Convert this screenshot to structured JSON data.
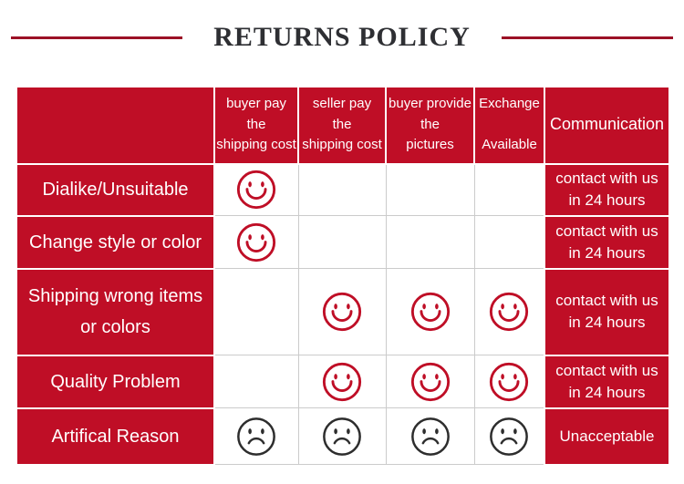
{
  "page": {
    "title": "RETURNS POLICY"
  },
  "table": {
    "columns": [
      {
        "key": "category",
        "label": ""
      },
      {
        "key": "buyer_pay",
        "label": "buyer pay\nthe\nshipping cost"
      },
      {
        "key": "seller_pay",
        "label": "seller pay\nthe\nshipping cost"
      },
      {
        "key": "buyer_provide",
        "label": "buyer provide\nthe\npictures"
      },
      {
        "key": "exchange",
        "label": "Exchange\n\nAvailable"
      },
      {
        "key": "communication",
        "label": "Communication"
      }
    ],
    "rows": [
      {
        "label": "Dialike/Unsuitable",
        "cells": [
          "smile",
          "",
          "",
          ""
        ],
        "communication": "contact with us\nin 24 hours"
      },
      {
        "label": "Change style or color",
        "cells": [
          "smile",
          "",
          "",
          ""
        ],
        "communication": "contact with us\nin 24 hours"
      },
      {
        "label": "Shipping wrong items\nor colors",
        "cells": [
          "",
          "smile",
          "smile",
          "smile"
        ],
        "communication": "contact with us\nin 24 hours"
      },
      {
        "label": "Quality Problem",
        "cells": [
          "",
          "smile",
          "smile",
          "smile"
        ],
        "communication": "contact with us\nin 24 hours"
      },
      {
        "label": "Artifical Reason",
        "cells": [
          "frown",
          "frown",
          "frown",
          "frown"
        ],
        "communication": "Unacceptable"
      }
    ]
  },
  "icons": {
    "smile": "smiley-face-icon",
    "frown": "sad-face-icon"
  },
  "colors": {
    "table_red": "#bf0e26",
    "divider_red": "#9c1126",
    "smiley_red": "#bf0e26",
    "sad_face_dark": "#2d2d2d",
    "grid_line_gray": "#cbcbcb",
    "cell_text_white": "#ffffff",
    "title_text": "#2e2f33"
  }
}
